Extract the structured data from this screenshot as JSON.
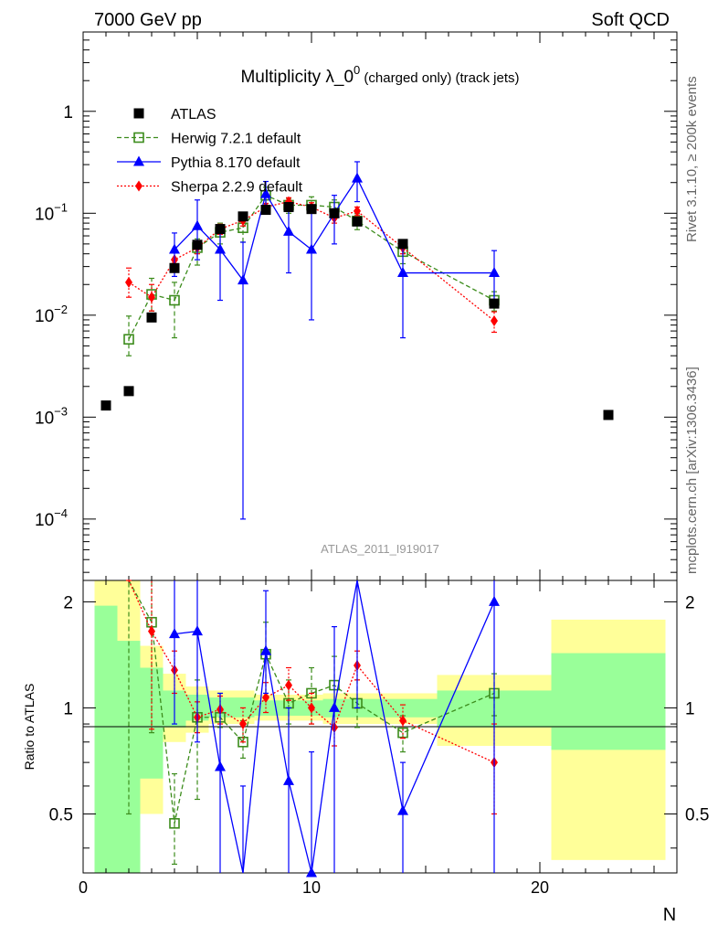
{
  "header": {
    "left": "7000 GeV pp",
    "right": "Soft QCD"
  },
  "side_labels": {
    "rivet": "Rivet 3.1.10, ≥ 200k events",
    "mcplots": "mcplots.cern.ch [arXiv:1306.3436]"
  },
  "chart_data": {
    "type": "scatter",
    "title": {
      "main": "Multiplicity λ_0",
      "sup": "0",
      "rest": " (charged only) (track jets)"
    },
    "watermark": "ATLAS_2011_I919017",
    "xlabel": "N",
    "ylabel_ratio": "Ratio to ATLAS",
    "xlim": [
      0,
      26
    ],
    "ylim_main": [
      2.5e-05,
      6
    ],
    "ylim_ratio": [
      0.34,
      2.3
    ],
    "y_scale": "log",
    "x_ticks": [
      "0",
      "10",
      "20"
    ],
    "y_ticks_main": [
      {
        "v": 1,
        "label": "1"
      },
      {
        "v": 0.1,
        "label": "10",
        "sup": "−1"
      },
      {
        "v": 0.01,
        "label": "10",
        "sup": "−2"
      },
      {
        "v": 0.001,
        "label": "10",
        "sup": "−3"
      },
      {
        "v": 0.0001,
        "label": "10",
        "sup": "−4"
      }
    ],
    "y_ticks_ratio": [
      {
        "v": 0.5,
        "label": "0.5"
      },
      {
        "v": 1,
        "label": "1"
      },
      {
        "v": 2,
        "label": "2"
      }
    ],
    "legend_position": "top-left",
    "series": [
      {
        "name": "ATLAS",
        "color": "#000000",
        "marker": "square-filled",
        "line": "none",
        "x": [
          1,
          2,
          3,
          4,
          5,
          6,
          7,
          8,
          9,
          10,
          11,
          12,
          14,
          18,
          23
        ],
        "y": [
          0.0013,
          0.0018,
          0.0095,
          0.029,
          0.049,
          0.07,
          0.093,
          0.108,
          0.115,
          0.11,
          0.1,
          0.083,
          0.05,
          0.013,
          0.00105
        ]
      },
      {
        "name": "Herwig 7.2.1 default",
        "color": "#3c8c1c",
        "marker": "square-open",
        "line": "dashed",
        "x": [
          2,
          3,
          4,
          5,
          6,
          7,
          8,
          9,
          10,
          11,
          12,
          14,
          18
        ],
        "y": [
          0.0058,
          0.016,
          0.014,
          0.046,
          0.065,
          0.072,
          0.15,
          0.12,
          0.12,
          0.115,
          0.084,
          0.042,
          0.014
        ],
        "err_lo": [
          0.0018,
          0.005,
          0.008,
          0.015,
          0.015,
          0.02,
          0.03,
          0.02,
          0.02,
          0.015,
          0.015,
          0.01,
          0.003
        ],
        "err_hi": [
          0.004,
          0.007,
          0.007,
          0.01,
          0.015,
          0.02,
          0.03,
          0.02,
          0.025,
          0.02,
          0.015,
          0.01,
          0.003
        ],
        "ratio": [
          3.2,
          1.75,
          0.47,
          0.94,
          0.94,
          0.8,
          1.42,
          1.03,
          1.1,
          1.16,
          1.03,
          0.85,
          1.1
        ],
        "ratio_lo": [
          0.5,
          0.85,
          0.36,
          0.55,
          0.88,
          0.72,
          1.1,
          0.9,
          0.9,
          1.0,
          0.88,
          0.75,
          0.95
        ],
        "ratio_hi": [
          3.5,
          2.3,
          0.65,
          1.2,
          1.1,
          0.92,
          1.75,
          1.2,
          1.3,
          1.4,
          1.2,
          0.95,
          1.25
        ]
      },
      {
        "name": "Pythia 8.170 default",
        "color": "#0000ff",
        "marker": "triangle-filled",
        "line": "solid",
        "x": [
          4,
          5,
          6,
          7,
          8,
          9,
          10,
          11,
          12,
          14,
          18
        ],
        "y": [
          0.044,
          0.075,
          0.044,
          0.022,
          0.155,
          0.066,
          0.044,
          0.1,
          0.22,
          0.026,
          0.026
        ],
        "err_lo": [
          0.02,
          0.04,
          0.03,
          0.0219,
          0.05,
          0.04,
          0.035,
          0.05,
          0.09,
          0.02,
          0.014
        ],
        "err_hi": [
          0.02,
          0.06,
          0.03,
          0.03,
          0.05,
          0.06,
          0.07,
          0.05,
          0.1,
          0.02,
          0.017
        ],
        "ratio": [
          1.62,
          1.65,
          0.68,
          0.3,
          1.45,
          0.62,
          0.34,
          1.0,
          2.4,
          0.51,
          2.0
        ],
        "ratio_lo": [
          0.9,
          0.8,
          0.3,
          0.1,
          1.1,
          0.34,
          0.1,
          0.34,
          1.0,
          0.3,
          0.34
        ],
        "ratio_hi": [
          2.3,
          2.3,
          1.1,
          0.6,
          2.15,
          1.0,
          0.75,
          1.7,
          2.3,
          0.7,
          2.3
        ]
      },
      {
        "name": "Sherpa 2.2.9 default",
        "color": "#ff0000",
        "marker": "diamond-filled",
        "line": "dotted",
        "x": [
          2,
          3,
          4,
          5,
          6,
          7,
          8,
          9,
          10,
          11,
          12,
          14,
          18
        ],
        "y": [
          0.021,
          0.015,
          0.035,
          0.046,
          0.07,
          0.085,
          0.115,
          0.13,
          0.115,
          0.09,
          0.105,
          0.046,
          0.0088
        ],
        "err_lo": [
          0.006,
          0.004,
          0.006,
          0.006,
          0.008,
          0.01,
          0.01,
          0.012,
          0.012,
          0.01,
          0.01,
          0.006,
          0.002
        ],
        "err_hi": [
          0.008,
          0.005,
          0.006,
          0.006,
          0.008,
          0.01,
          0.01,
          0.012,
          0.012,
          0.01,
          0.01,
          0.006,
          0.002
        ],
        "ratio": [
          10,
          1.65,
          1.28,
          0.94,
          0.99,
          0.9,
          1.07,
          1.16,
          1.0,
          0.88,
          1.32,
          0.92,
          0.7
        ],
        "ratio_lo": [
          8,
          0.87,
          1.1,
          0.85,
          0.9,
          0.8,
          0.97,
          1.05,
          0.9,
          0.78,
          1.2,
          0.82,
          0.5
        ],
        "ratio_hi": [
          12,
          2.3,
          1.45,
          1.04,
          1.08,
          1.0,
          1.18,
          1.3,
          1.1,
          0.98,
          1.45,
          1.02,
          0.9
        ]
      }
    ],
    "ratio_bands": [
      {
        "x0": 0.5,
        "x1": 1.5,
        "inner": [
          0.34,
          1.95
        ],
        "outer": [
          0.34,
          2.3
        ]
      },
      {
        "x0": 1.5,
        "x1": 2.5,
        "inner": [
          0.34,
          1.55
        ],
        "outer": [
          0.34,
          2.3
        ]
      },
      {
        "x0": 2.5,
        "x1": 3.5,
        "inner": [
          0.63,
          1.3
        ],
        "outer": [
          0.5,
          1.5
        ]
      },
      {
        "x0": 3.5,
        "x1": 4.5,
        "inner": [
          0.88,
          1.12
        ],
        "outer": [
          0.8,
          1.25
        ]
      },
      {
        "x0": 4.5,
        "x1": 5.5,
        "inner": [
          0.92,
          1.09
        ],
        "outer": [
          0.85,
          1.15
        ]
      },
      {
        "x0": 5.5,
        "x1": 7.5,
        "inner": [
          0.94,
          1.07
        ],
        "outer": [
          0.9,
          1.12
        ]
      },
      {
        "x0": 7.5,
        "x1": 10.5,
        "inner": [
          0.95,
          1.05
        ],
        "outer": [
          0.92,
          1.09
        ]
      },
      {
        "x0": 10.5,
        "x1": 15.5,
        "inner": [
          0.94,
          1.06
        ],
        "outer": [
          0.9,
          1.1
        ]
      },
      {
        "x0": 15.5,
        "x1": 20.5,
        "inner": [
          0.88,
          1.12
        ],
        "outer": [
          0.78,
          1.24
        ]
      },
      {
        "x0": 20.5,
        "x1": 25.5,
        "inner": [
          0.76,
          1.43
        ],
        "outer": [
          0.37,
          1.78
        ]
      }
    ]
  }
}
